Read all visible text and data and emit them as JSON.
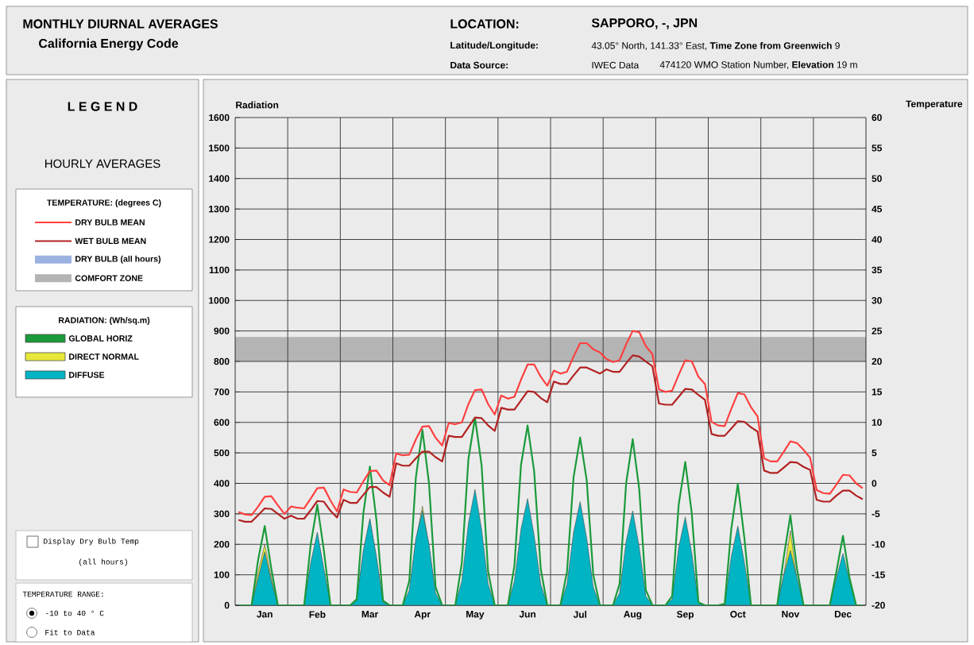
{
  "chart_data": {
    "type": "area",
    "title": "MONTHLY DIURNAL AVERAGES",
    "subtitle": "California Energy Code",
    "legend_title": "L E G E N D",
    "ylabel": "Radiation",
    "y2label": "Temperature",
    "annotations": [
      "LOCATION:",
      "SAPPORO, -, JPN",
      "Latitude/Longitude:",
      "43.05° North, 141.33° East, **Time Zone from Greenwich** 9",
      "Data Source:",
      "IWEC Data",
      "474120 WMO Station Number, **Elevation** 19 m",
      "HOURLY AVERAGES",
      "TEMPERATURE: (degrees C)",
      "DRY BULB (all hours)",
      "RADIATION: (Wh/sq.m)",
      "Display Dry Bulb Temp",
      "(all hours)",
      "TEMPERATURE RANGE:",
      "-10 to 40 ° C",
      "Fit to Data"
    ],
    "categories": [
      null,
      null,
      null,
      null,
      "Jan",
      null,
      null,
      null,
      null,
      null,
      null,
      null,
      "Feb",
      null,
      null,
      null,
      null,
      null,
      null,
      null,
      "Mar",
      null,
      null,
      null,
      null,
      null,
      null,
      null,
      "Apr",
      null,
      null,
      null,
      null,
      null,
      null,
      null,
      "May",
      null,
      null,
      null,
      null,
      null,
      null,
      null,
      "Jun",
      null,
      null,
      null,
      null,
      null,
      null,
      null,
      "Jul",
      null,
      null,
      null,
      null,
      null,
      null,
      null,
      "Aug",
      null,
      null,
      null,
      null,
      null,
      null,
      null,
      "Sep",
      null,
      null,
      null,
      null,
      null,
      null,
      null,
      "Oct",
      null,
      null,
      null,
      null,
      null,
      null,
      null,
      "Nov",
      null,
      null,
      null,
      null,
      null,
      null,
      null,
      "Dec",
      null,
      null,
      null
    ],
    "series": [
      {
        "name": "GLOBAL HORIZ",
        "type": "line",
        "color": "#1a9a3a",
        "values": [
          0,
          0,
          0,
          150,
          260,
          120,
          0,
          0,
          0,
          0,
          0,
          200,
          330,
          180,
          0,
          0,
          0,
          0,
          20,
          300,
          455,
          280,
          15,
          0,
          0,
          0,
          80,
          420,
          575,
          400,
          60,
          0,
          0,
          0,
          140,
          480,
          615,
          460,
          110,
          0,
          0,
          0,
          130,
          460,
          590,
          440,
          120,
          0,
          0,
          0,
          110,
          420,
          550,
          410,
          100,
          0,
          0,
          0,
          70,
          400,
          545,
          380,
          50,
          0,
          0,
          0,
          30,
          330,
          470,
          300,
          10,
          0,
          0,
          0,
          5,
          250,
          398,
          220,
          0,
          0,
          0,
          0,
          0,
          160,
          295,
          120,
          0,
          0,
          0,
          0,
          0,
          110,
          228,
          90,
          0,
          0
        ]
      },
      {
        "name": "DIRECT NORMAL",
        "color": "#e8e83a",
        "values": [
          0,
          0,
          0,
          110,
          200,
          90,
          0,
          0,
          0,
          0,
          0,
          130,
          230,
          110,
          0,
          0,
          0,
          0,
          10,
          170,
          280,
          150,
          5,
          0,
          0,
          0,
          40,
          210,
          325,
          190,
          30,
          0,
          0,
          0,
          50,
          220,
          370,
          210,
          40,
          0,
          0,
          0,
          40,
          190,
          340,
          180,
          40,
          0,
          0,
          0,
          40,
          180,
          330,
          170,
          30,
          0,
          0,
          0,
          30,
          180,
          300,
          170,
          20,
          0,
          0,
          0,
          10,
          170,
          280,
          150,
          5,
          0,
          0,
          0,
          0,
          140,
          255,
          120,
          0,
          0,
          0,
          0,
          0,
          100,
          245,
          80,
          0,
          0,
          0,
          0,
          0,
          70,
          160,
          60,
          0,
          0
        ]
      },
      {
        "name": "DIFFUSE",
        "color": "#00b4c4",
        "values": [
          0,
          0,
          0,
          90,
          175,
          80,
          0,
          0,
          0,
          0,
          0,
          140,
          240,
          120,
          0,
          0,
          0,
          0,
          15,
          180,
          285,
          160,
          10,
          0,
          0,
          0,
          50,
          220,
          310,
          200,
          40,
          0,
          0,
          0,
          80,
          270,
          380,
          250,
          70,
          0,
          0,
          0,
          80,
          250,
          350,
          230,
          70,
          0,
          0,
          0,
          70,
          240,
          340,
          220,
          60,
          0,
          0,
          0,
          40,
          210,
          310,
          190,
          30,
          0,
          0,
          0,
          20,
          190,
          290,
          170,
          10,
          0,
          0,
          0,
          0,
          160,
          260,
          140,
          0,
          0,
          0,
          0,
          0,
          100,
          180,
          90,
          0,
          0,
          0,
          0,
          0,
          90,
          170,
          80,
          0,
          0
        ]
      },
      {
        "name": "DRY BULB MEAN",
        "type": "line",
        "axis": "y2",
        "color": "#ff4040",
        "values": [
          -4.7,
          -5.1,
          -5.2,
          -3.8,
          -2.2,
          -2.1,
          -3.6,
          -5.0,
          -3.8,
          -4.0,
          -4.1,
          -2.5,
          -0.8,
          -0.7,
          -2.8,
          -4.6,
          -1.0,
          -1.4,
          -1.5,
          0.3,
          2.0,
          2.1,
          0.5,
          -0.3,
          4.9,
          4.6,
          4.7,
          7.2,
          9.3,
          9.4,
          7.5,
          6.2,
          9.9,
          9.7,
          10.0,
          13.0,
          15.3,
          15.4,
          13.0,
          11.3,
          14.4,
          13.9,
          14.2,
          17.0,
          19.5,
          19.5,
          17.5,
          16.0,
          18.5,
          18.0,
          18.3,
          20.8,
          23.0,
          23.0,
          22.0,
          21.5,
          20.4,
          19.9,
          20.2,
          22.8,
          25.0,
          24.8,
          22.5,
          21.2,
          15.4,
          15.0,
          15.2,
          17.8,
          20.2,
          20.0,
          17.5,
          16.3,
          10.1,
          9.5,
          9.4,
          12.2,
          14.8,
          14.6,
          12.5,
          11.0,
          4.1,
          3.6,
          3.6,
          5.2,
          6.9,
          6.6,
          5.5,
          4.2,
          -1.1,
          -1.6,
          -1.7,
          -0.2,
          1.4,
          1.3,
          0,
          -0.8
        ]
      },
      {
        "name": "WET BULB MEAN",
        "type": "line",
        "axis": "y2",
        "color": "#b22222",
        "values": [
          -6,
          -6.3,
          -6.3,
          -5.2,
          -4.1,
          -4.2,
          -5,
          -5.8,
          -5.3,
          -5.8,
          -5.8,
          -4.4,
          -2.9,
          -3.0,
          -4.5,
          -5.6,
          -2.7,
          -3.2,
          -3.2,
          -1.9,
          -0.6,
          -0.6,
          -1.5,
          -2.2,
          3.3,
          2.9,
          2.9,
          4.1,
          5.2,
          5.2,
          4.3,
          3.6,
          7.8,
          7.6,
          7.6,
          9.2,
          10.8,
          10.7,
          9.5,
          8.6,
          12.4,
          12.1,
          12.1,
          13.6,
          15.1,
          15.0,
          14,
          13.3,
          16.7,
          16.3,
          16.3,
          17.7,
          19.0,
          19.0,
          18.5,
          18.0,
          18.7,
          18.3,
          18.3,
          19.7,
          21.0,
          20.8,
          20.0,
          19.2,
          13.1,
          12.9,
          12.9,
          14.2,
          15.5,
          15.4,
          14.5,
          13.7,
          8.1,
          7.8,
          7.8,
          9.0,
          10.2,
          10.1,
          9.2,
          8.5,
          2.1,
          1.7,
          1.7,
          2.6,
          3.5,
          3.4,
          2.7,
          2.2,
          -2.7,
          -3.0,
          -3.0,
          -2.0,
          -1.2,
          -1.2,
          -2,
          -2.6
        ]
      }
    ],
    "bands": [
      {
        "axis": "y2",
        "from": 20,
        "to": 24,
        "label": "COMFORT ZONE",
        "color": "#b4b4b4"
      }
    ],
    "ylim": [
      0,
      1600
    ],
    "yticks": [
      0,
      100,
      200,
      300,
      400,
      500,
      600,
      700,
      800,
      900,
      1000,
      1100,
      1200,
      1300,
      1400,
      1500,
      1600
    ],
    "y2lim": [
      -20,
      60
    ],
    "y2ticks": [
      -20,
      -15,
      -10,
      -5,
      0,
      5,
      10,
      15,
      20,
      25,
      30,
      35,
      40,
      45,
      50,
      55,
      60
    ],
    "grid": true,
    "legend": "left"
  }
}
